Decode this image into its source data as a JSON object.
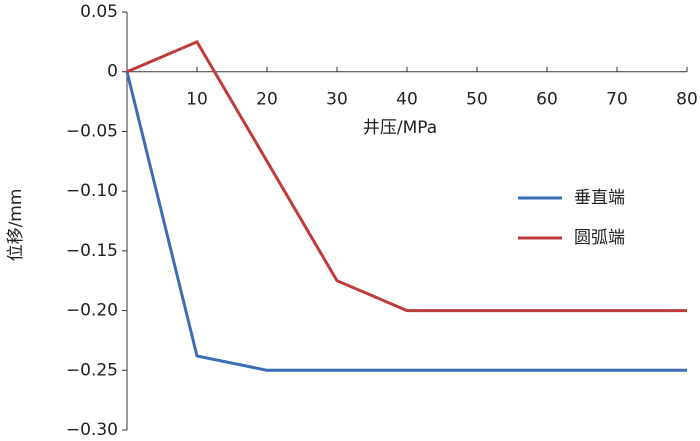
{
  "chart_data": {
    "type": "line",
    "x_label": "井压/MPa",
    "y_label": "位移/mm",
    "x": [
      0,
      10,
      20,
      30,
      40,
      50,
      60,
      70,
      80
    ],
    "series": [
      {
        "name": "垂直端",
        "color": "#3a6db5",
        "values": [
          0,
          -0.238,
          -0.25,
          -0.25,
          -0.25,
          -0.25,
          -0.25,
          -0.25,
          -0.25
        ]
      },
      {
        "name": "圆弧端",
        "color": "#bf3b3b",
        "values": [
          0,
          0.025,
          -0.075,
          -0.175,
          -0.2,
          -0.2,
          -0.2,
          -0.2,
          -0.2
        ]
      }
    ],
    "xlim": [
      0,
      80
    ],
    "xticks": [
      10,
      20,
      30,
      40,
      50,
      60,
      70,
      80
    ],
    "ylim": [
      -0.3,
      0.05
    ],
    "yticks": [
      {
        "value": -0.3,
        "label": "−0.30"
      },
      {
        "value": -0.25,
        "label": "−0.25"
      },
      {
        "value": -0.2,
        "label": "−0.20"
      },
      {
        "value": -0.15,
        "label": "−0.15"
      },
      {
        "value": -0.1,
        "label": "−0.10"
      },
      {
        "value": -0.05,
        "label": "−0.05"
      },
      0,
      0.05
    ],
    "grid": false,
    "legend": "right"
  }
}
